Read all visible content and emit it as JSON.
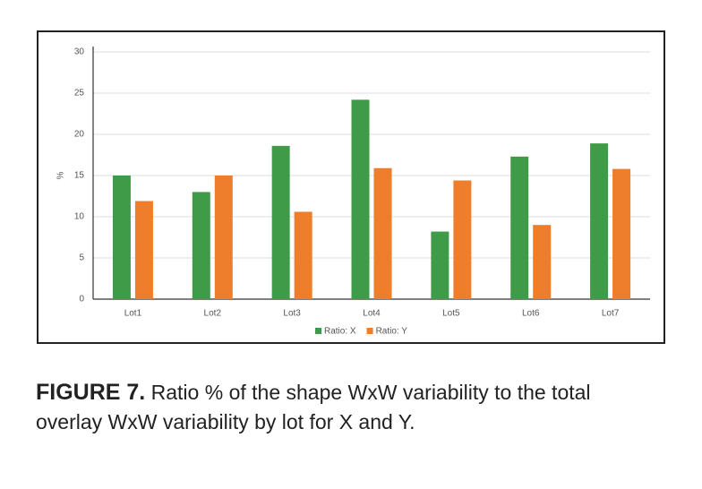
{
  "chart_data": {
    "type": "bar",
    "y_label": "%",
    "categories": [
      "Lot1",
      "Lot2",
      "Lot3",
      "Lot4",
      "Lot5",
      "Lot6",
      "Lot7"
    ],
    "series": [
      {
        "name": "Ratio: X",
        "color": "#3f9b47",
        "values": [
          15,
          13,
          18.6,
          24.2,
          8.2,
          17.3,
          18.9
        ]
      },
      {
        "name": "Ratio: Y",
        "color": "#ee7d2c",
        "values": [
          11.9,
          15,
          10.6,
          15.9,
          14.4,
          9,
          15.8
        ]
      }
    ],
    "ylim": [
      0,
      30
    ],
    "yticks": [
      0,
      5,
      10,
      15,
      20,
      25,
      30
    ],
    "grid": true,
    "legend": "bottom"
  },
  "caption": {
    "label": "FIGURE 7.",
    "text": "Ratio % of the shape WxW variability to the total overlay WxW variability by lot for X and Y."
  }
}
